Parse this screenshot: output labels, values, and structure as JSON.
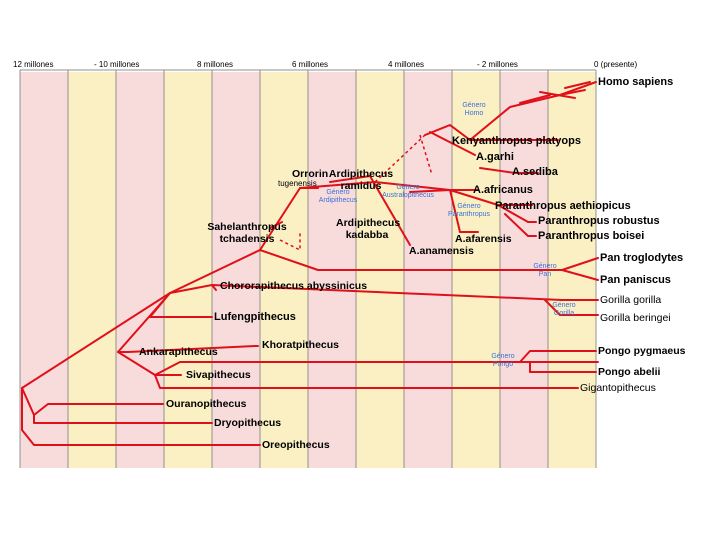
{
  "timeline": {
    "ticks": [
      "12 millones",
      "- 10 millones",
      "8 millones",
      "6 millones",
      "4 millones",
      "- 2 millones",
      "0 (presente)"
    ]
  },
  "colors": {
    "band_pink": "#f8dcdc",
    "band_yellow": "#fbf0c4",
    "branch": "#e0101a",
    "genus": "#3b6fd8"
  },
  "species": {
    "homo_sapiens": "Homo sapiens",
    "kenyanthropus": "Kenyanthropus platyops",
    "a_garhi": "A.garhi",
    "a_sediba": "A.sediba",
    "a_africanus": "A.africanus",
    "p_aethiopicus": "Paranthropus aethiopicus",
    "p_robustus": "Paranthropus robustus",
    "p_boisei": "Paranthropus boisei",
    "a_afarensis": "A.afarensis",
    "a_anamensis": "A.anamensis",
    "ardi_kadabba": "Ardipithecus kadabba",
    "orrorin": "Orrorin",
    "orrorin_sub": "tugenensis",
    "ardi_ramidus": "Ardipithecus ramidus",
    "sahelanthropus": "Sahelanthropus tchadensis",
    "pan_troglodytes": "Pan troglodytes",
    "pan_paniscus": "Pan paniscus",
    "chororapithecus": "Chororapithecus abyssinicus",
    "gorilla_gorilla": "Gorilla gorilla",
    "gorilla_beringei": "Gorilla beringei",
    "lufengpithecus": "Lufengpithecus",
    "khoratpithecus": "Khoratpithecus",
    "ankarapithecus": "Ankarapithecus",
    "pongo_pygmaeus": "Pongo pygmaeus",
    "pongo_abelii": "Pongo abelii",
    "sivapithecus": "Sivapithecus",
    "gigantopithecus": "Gigantopithecus",
    "ouranopithecus": "Ouranopithecus",
    "dryopithecus": "Dryopithecus",
    "oreopithecus": "Oreopithecus"
  },
  "genera": {
    "homo": "Género Homo",
    "ardipithecus": "Género Ardipithecus",
    "australopithecus": "Género Australopithecus",
    "paranthropus": "Género Paranthropus",
    "pan": "Género Pan",
    "gorilla": "Género Gorilla",
    "pongo": "Género Pongo"
  }
}
